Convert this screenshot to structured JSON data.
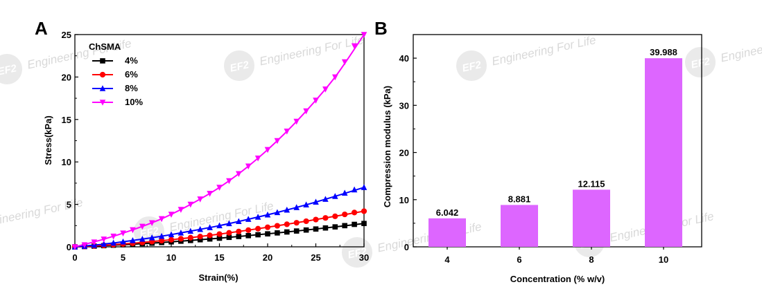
{
  "watermark": {
    "logo_text": "EF2",
    "text": "Engineering For Life",
    "color": "#d9d9d9"
  },
  "chart_data": [
    {
      "panel": "A",
      "type": "line",
      "title": "",
      "xlabel": "Strain(%)",
      "ylabel": "Stress(kPa)",
      "xlim": [
        0,
        30
      ],
      "ylim": [
        0,
        25
      ],
      "xticks": [
        "0",
        "5",
        "10",
        "15",
        "20",
        "25",
        "30"
      ],
      "yticks": [
        "0",
        "5",
        "10",
        "15",
        "20",
        "25"
      ],
      "legend": {
        "title": "ChSMA",
        "position": "top-left"
      },
      "grid": false,
      "series": [
        {
          "name": "4%",
          "color": "#000000",
          "marker": "square",
          "x": [
            0,
            3,
            6,
            9,
            12,
            15,
            18,
            21,
            24,
            27,
            30
          ],
          "y": [
            0,
            0.14,
            0.31,
            0.51,
            0.75,
            1.02,
            1.32,
            1.64,
            1.98,
            2.35,
            2.75
          ]
        },
        {
          "name": "6%",
          "color": "#ff0000",
          "marker": "circle",
          "x": [
            0,
            3,
            6,
            9,
            12,
            15,
            18,
            21,
            24,
            27,
            30
          ],
          "y": [
            0,
            0.18,
            0.42,
            0.72,
            1.08,
            1.5,
            1.97,
            2.48,
            3.02,
            3.6,
            4.2
          ]
        },
        {
          "name": "8%",
          "color": "#0000ff",
          "marker": "triangle-up",
          "x": [
            0,
            3,
            6,
            9,
            12,
            15,
            18,
            21,
            24,
            27,
            30
          ],
          "y": [
            0,
            0.32,
            0.75,
            1.25,
            1.85,
            2.5,
            3.25,
            4.05,
            4.95,
            5.95,
            7.0
          ]
        },
        {
          "name": "10%",
          "color": "#ff00ff",
          "marker": "triangle-down",
          "x": [
            0,
            3,
            6,
            9,
            12,
            15,
            18,
            21,
            24,
            27,
            30
          ],
          "y": [
            0,
            0.9,
            2.0,
            3.3,
            5.0,
            7.0,
            9.5,
            12.5,
            16.0,
            20.0,
            25.0
          ]
        }
      ]
    },
    {
      "panel": "B",
      "type": "bar",
      "title": "",
      "xlabel": "Concentration (% w/v)",
      "ylabel": "Compression modulus (kPa)",
      "categories": [
        "4",
        "6",
        "8",
        "10"
      ],
      "values": [
        6.042,
        8.881,
        12.115,
        39.988
      ],
      "value_labels": [
        "6.042",
        "8.881",
        "12.115",
        "39.988"
      ],
      "ylim": [
        0,
        45
      ],
      "yticks": [
        "0",
        "10",
        "20",
        "30",
        "40"
      ],
      "color": "#dd66ff",
      "grid": false
    }
  ]
}
